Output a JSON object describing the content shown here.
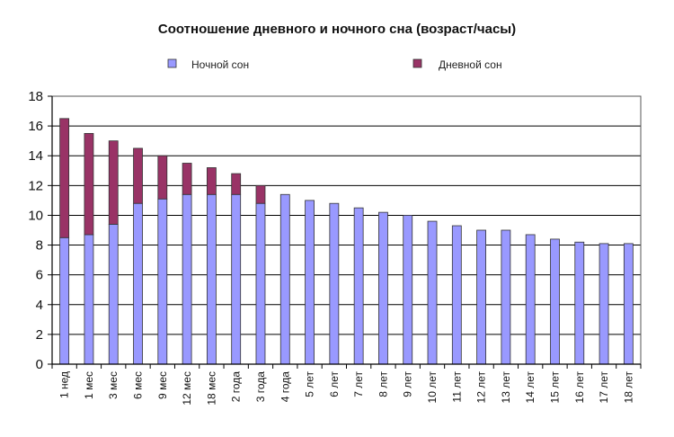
{
  "chart_data": {
    "type": "bar",
    "stacked": true,
    "title": "Соотношение дневного и ночного сна (возраст/часы)",
    "xlabel": "",
    "ylabel": "",
    "ylim": [
      0,
      18
    ],
    "yticks": [
      0,
      2,
      4,
      6,
      8,
      10,
      12,
      14,
      16,
      18
    ],
    "grid": true,
    "legend_position": "top",
    "categories": [
      "1 нед",
      "1 мес",
      "3 мес",
      "6 мес",
      "9 мес",
      "12 мес",
      "18 мес",
      "2 года",
      "3 года",
      "4 года",
      "5 лет",
      "6 лет",
      "7 лет",
      "8 лет",
      "9 лет",
      "10 лет",
      "11 лет",
      "12 лет",
      "13 лет",
      "14 лет",
      "15 лет",
      "16 лет",
      "17 лет",
      "18 лет"
    ],
    "series": [
      {
        "name": "Ночной сон",
        "color": "#9999ff",
        "values": [
          8.5,
          8.7,
          9.4,
          10.8,
          11.1,
          11.4,
          11.4,
          11.4,
          10.8,
          11.4,
          11.0,
          10.8,
          10.5,
          10.2,
          10.0,
          9.6,
          9.3,
          9.0,
          9.0,
          8.7,
          8.4,
          8.2,
          8.1,
          8.1
        ]
      },
      {
        "name": "Дневной сон",
        "color": "#993366",
        "values": [
          8.0,
          6.8,
          5.6,
          3.7,
          2.9,
          2.1,
          1.8,
          1.4,
          1.2,
          0,
          0,
          0,
          0,
          0,
          0,
          0,
          0,
          0,
          0,
          0,
          0,
          0,
          0,
          0
        ]
      }
    ]
  }
}
